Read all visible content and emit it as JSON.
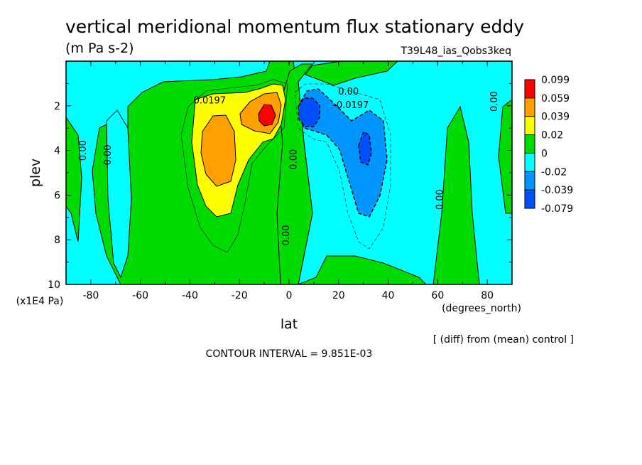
{
  "chart_data": {
    "type": "contour",
    "title": "vertical meridional momentum flux stationary eddy",
    "units": "(m Pa s-2)",
    "run_label": "T39L48_ias_Qobs3keq",
    "xlabel": "lat",
    "xunits": "(degrees_north)",
    "ylabel": "plev",
    "yunits": "(x1E4 Pa)",
    "xlim": [
      -90,
      90
    ],
    "ylim": [
      10,
      0
    ],
    "xticks": [
      "-80",
      "-60",
      "-40",
      "-20",
      "0",
      "20",
      "40",
      "60",
      "80"
    ],
    "xtick_values": [
      -80,
      -60,
      -40,
      -20,
      0,
      20,
      40,
      60,
      80
    ],
    "yticks": [
      "2",
      "4",
      "6",
      "8",
      "10"
    ],
    "ytick_values": [
      2,
      4,
      6,
      8,
      10
    ],
    "diff_note": "[ (diff) from (mean) control ]",
    "contour_interval": "CONTOUR INTERVAL = 9.851E-03",
    "colorbar": {
      "labels": [
        "0.099",
        "0.059",
        "0.039",
        "0.02",
        "0",
        "-0.02",
        "-0.039",
        "-0.079"
      ],
      "colors": [
        "#ff0000",
        "#ff9f00",
        "#ffff00",
        "#00dc00",
        "#00ffff",
        "#0096ff",
        "#0050ff"
      ]
    },
    "contour_labels": [
      {
        "text": "0.0197",
        "lat": -32,
        "plev": 1.9
      },
      {
        "text": "0.00",
        "lat": 24,
        "plev": 1.5
      },
      {
        "text": "-0.0197",
        "lat": 25,
        "plev": 2.1
      },
      {
        "text": "0.00",
        "lat": -82,
        "plev": 4.0
      },
      {
        "text": "0.00",
        "lat": -72,
        "plev": 4.2
      },
      {
        "text": "0.00",
        "lat": 3,
        "plev": 4.4
      },
      {
        "text": "0.00",
        "lat": 0,
        "plev": 7.8
      },
      {
        "text": "0.00",
        "lat": 62,
        "plev": 6.2
      },
      {
        "text": "0.00",
        "lat": 84,
        "plev": 1.8
      }
    ],
    "features": [
      {
        "name": "positive-lobe",
        "peak_lat": -30,
        "peak_plev": 4.0,
        "peak_value": 0.05
      },
      {
        "name": "positive-max",
        "peak_lat": -8,
        "peak_plev": 2.5,
        "peak_value": 0.099
      },
      {
        "name": "negative-lobe",
        "peak_lat": 8,
        "peak_plev": 2.4,
        "peak_value": -0.05
      },
      {
        "name": "negative-min",
        "peak_lat": 30,
        "peak_plev": 4.0,
        "peak_value": -0.06
      }
    ]
  }
}
